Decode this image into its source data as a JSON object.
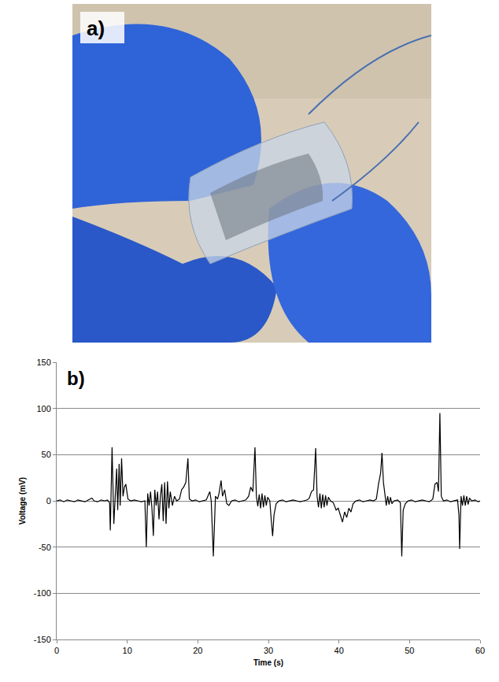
{
  "photo": {
    "label": "a)"
  },
  "chart_data": {
    "type": "line",
    "annotations": [
      "b)"
    ],
    "x_label": "Time (s)",
    "y_label": "Voltage (mV)",
    "color": "#000000",
    "xlim": [
      0,
      60
    ],
    "xticks": [
      0,
      10,
      20,
      30,
      40,
      50,
      60
    ],
    "ylim": [
      -150,
      150
    ],
    "yticks": [
      -150,
      -100,
      -50,
      0,
      50,
      100,
      150
    ],
    "grid": true,
    "x": [
      0,
      0.5,
      1,
      1.5,
      2,
      2.5,
      3,
      3.5,
      4,
      4.5,
      5,
      5.3,
      5.8,
      6.3,
      6.8,
      7.2,
      7.5,
      7.6,
      7.85,
      8.1,
      8.3,
      8.5,
      8.65,
      8.85,
      9.0,
      9.2,
      9.4,
      9.6,
      9.8,
      10.1,
      10.5,
      11,
      11.5,
      12,
      12.5,
      12.7,
      12.9,
      13.1,
      13.3,
      13.5,
      13.7,
      13.9,
      14.1,
      14.3,
      14.5,
      14.7,
      14.9,
      15.1,
      15.3,
      15.5,
      15.7,
      15.9,
      16.1,
      16.4,
      16.7,
      17,
      17.4,
      17.7,
      18.0,
      18.3,
      18.6,
      18.8,
      19.2,
      19.7,
      20.2,
      20.7,
      21.2,
      21.7,
      21.9,
      22.2,
      22.5,
      22.8,
      23.0,
      23.3,
      23.5,
      23.8,
      24.1,
      24.4,
      24.8,
      25.3,
      25.8,
      26.3,
      26.8,
      27.2,
      27.5,
      27.8,
      28.1,
      28.3,
      28.5,
      28.7,
      28.9,
      29.1,
      29.3,
      29.5,
      29.7,
      29.9,
      30.2,
      30.4,
      30.6,
      30.8,
      31.1,
      31.5,
      32,
      32.5,
      33,
      33.5,
      34,
      34.5,
      35,
      35.5,
      35.8,
      36.1,
      36.4,
      36.7,
      36.9,
      37.1,
      37.3,
      37.5,
      37.7,
      37.9,
      38.1,
      38.3,
      38.5,
      38.8,
      39.2,
      39.6,
      39.9,
      40.2,
      40.5,
      40.8,
      41.1,
      41.4,
      41.7,
      42,
      42.4,
      42.9,
      43.4,
      43.9,
      44.4,
      44.9,
      45.3,
      45.6,
      45.9,
      46.1,
      46.3,
      46.5,
      46.7,
      46.9,
      47.1,
      47.3,
      47.5,
      47.8,
      48.3,
      48.7,
      48.9,
      49.1,
      49.4,
      49.8,
      50.3,
      50.8,
      51.3,
      51.8,
      52.3,
      52.8,
      53.3,
      53.6,
      53.9,
      54.1,
      54.3,
      54.5,
      54.8,
      55.3,
      55.8,
      56.3,
      56.8,
      57.0,
      57.1,
      57.3,
      57.5,
      57.7,
      57.9,
      58.1,
      58.3,
      58.5,
      58.8,
      59.3,
      59.7,
      60
    ],
    "values": [
      0,
      1,
      -1,
      1,
      0,
      -1,
      1,
      0,
      -1,
      1,
      3,
      0,
      -1,
      1,
      0,
      1,
      -2,
      -32,
      58,
      -25,
      10,
      35,
      -10,
      40,
      -5,
      46,
      5,
      15,
      18,
      2,
      0,
      1,
      0,
      -1,
      0,
      -50,
      8,
      -5,
      10,
      -8,
      -38,
      12,
      -5,
      10,
      -20,
      5,
      18,
      -22,
      20,
      -25,
      21,
      -8,
      10,
      -5,
      5,
      0,
      2,
      12,
      15,
      20,
      46,
      2,
      0,
      1,
      -1,
      0,
      1,
      10,
      0,
      -60,
      5,
      2,
      8,
      22,
      5,
      12,
      -3,
      -5,
      0,
      1,
      -1,
      0,
      1,
      5,
      15,
      10,
      58,
      5,
      -6,
      7,
      -8,
      8,
      -7,
      6,
      -5,
      4,
      0,
      -20,
      -38,
      -15,
      -3,
      0,
      1,
      -1,
      0,
      1,
      0,
      -1,
      0,
      1,
      3,
      10,
      12,
      57,
      5,
      -7,
      8,
      -8,
      7,
      -7,
      6,
      -5,
      4,
      0,
      -2,
      -10,
      -8,
      -15,
      -23,
      -12,
      -18,
      -8,
      -12,
      -3,
      0,
      1,
      -1,
      0,
      1,
      0,
      2,
      18,
      30,
      52,
      20,
      8,
      -5,
      5,
      -4,
      4,
      -3,
      0,
      1,
      -2,
      -60,
      -10,
      -3,
      0,
      1,
      -1,
      0,
      1,
      0,
      -1,
      2,
      18,
      20,
      10,
      95,
      5,
      0,
      1,
      -1,
      0,
      1,
      -15,
      -52,
      5,
      -5,
      6,
      -5,
      5,
      -4,
      3,
      0,
      1,
      -1,
      0
    ]
  }
}
